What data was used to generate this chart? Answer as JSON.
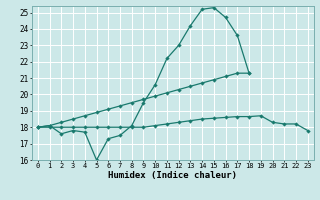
{
  "xlabel": "Humidex (Indice chaleur)",
  "bg_color": "#cce8e8",
  "grid_color": "#ffffff",
  "line_color": "#1a7a6e",
  "xlim": [
    -0.5,
    23.5
  ],
  "ylim": [
    16,
    25.4
  ],
  "xticks": [
    0,
    1,
    2,
    3,
    4,
    5,
    6,
    7,
    8,
    9,
    10,
    11,
    12,
    13,
    14,
    15,
    16,
    17,
    18,
    19,
    20,
    21,
    22,
    23
  ],
  "yticks": [
    16,
    17,
    18,
    19,
    20,
    21,
    22,
    23,
    24,
    25
  ],
  "line1_x": [
    0,
    1,
    2,
    3,
    4,
    5,
    6,
    7,
    8,
    9,
    10,
    11,
    12,
    13,
    14,
    15,
    16,
    17,
    18
  ],
  "line1_y": [
    18.0,
    18.1,
    17.6,
    17.8,
    17.7,
    16.0,
    17.3,
    17.5,
    18.1,
    19.5,
    20.6,
    22.2,
    23.0,
    24.2,
    25.2,
    25.3,
    24.7,
    23.6,
    21.3
  ],
  "line2_x": [
    0,
    1,
    2,
    3,
    4,
    5,
    6,
    7,
    8,
    9,
    10,
    11,
    12,
    13,
    14,
    15,
    16,
    17,
    18
  ],
  "line2_y": [
    18.0,
    18.1,
    18.3,
    18.5,
    18.7,
    18.9,
    19.1,
    19.3,
    19.5,
    19.7,
    19.9,
    20.1,
    20.3,
    20.5,
    20.7,
    20.9,
    21.1,
    21.3,
    21.3
  ],
  "line3_x": [
    0,
    1,
    2,
    3,
    4,
    5,
    6,
    7,
    8,
    9,
    10,
    11,
    12,
    13,
    14,
    15,
    16,
    17,
    18,
    19,
    20,
    21,
    22,
    23
  ],
  "line3_y": [
    18.0,
    18.0,
    18.0,
    18.0,
    18.0,
    18.0,
    18.0,
    18.0,
    18.0,
    18.0,
    18.1,
    18.2,
    18.3,
    18.4,
    18.5,
    18.55,
    18.6,
    18.65,
    18.65,
    18.7,
    18.3,
    18.2,
    18.2,
    17.8
  ]
}
